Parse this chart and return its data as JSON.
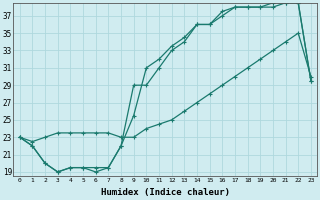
{
  "background_color": "#ceeae f",
  "bg": "#d0ecf0",
  "grid_color": "#afd8de",
  "line_color": "#1a7a6e",
  "xlabel": "Humidex (Indice chaleur)",
  "ylim": [
    18.5,
    38.5
  ],
  "xlim": [
    -0.5,
    23.5
  ],
  "yticks": [
    19,
    21,
    23,
    25,
    27,
    29,
    31,
    33,
    35,
    37
  ],
  "xticks": [
    0,
    1,
    2,
    3,
    4,
    5,
    6,
    7,
    8,
    9,
    10,
    11,
    12,
    13,
    14,
    15,
    16,
    17,
    18,
    19,
    20,
    21,
    22,
    23
  ],
  "line1_x": [
    0,
    1,
    2,
    3,
    4,
    5,
    6,
    7,
    8,
    9,
    10,
    11,
    12,
    13,
    14,
    15,
    16,
    17,
    18,
    19,
    20,
    21,
    22,
    23
  ],
  "line1_y": [
    23,
    22,
    20,
    19,
    19.5,
    19.5,
    19,
    19.5,
    22,
    29,
    29,
    31,
    33,
    34,
    36,
    36,
    37,
    38,
    38,
    38,
    38,
    38.5,
    38.5,
    29.5
  ],
  "line2_x": [
    0,
    1,
    2,
    3,
    4,
    5,
    6,
    7,
    8,
    9,
    10,
    11,
    12,
    13,
    14,
    15,
    16,
    17,
    18,
    19,
    20,
    21,
    22,
    23
  ],
  "line2_y": [
    23,
    22,
    20,
    19,
    19.5,
    19.5,
    19.5,
    19.5,
    22,
    25.5,
    31,
    32,
    33.5,
    34.5,
    36,
    36,
    37.5,
    38,
    38,
    38,
    38.5,
    38.5,
    38.5,
    29.5
  ],
  "line3_x": [
    0,
    1,
    2,
    3,
    4,
    5,
    6,
    7,
    8,
    9,
    10,
    11,
    12,
    13,
    14,
    15,
    16,
    17,
    18,
    19,
    20,
    21,
    22,
    23
  ],
  "line3_y": [
    23,
    22.5,
    23,
    23.5,
    23.5,
    23.5,
    23.5,
    23.5,
    23,
    23,
    24,
    24.5,
    25,
    26,
    27,
    28,
    29,
    30,
    31,
    32,
    33,
    34,
    35,
    30
  ]
}
